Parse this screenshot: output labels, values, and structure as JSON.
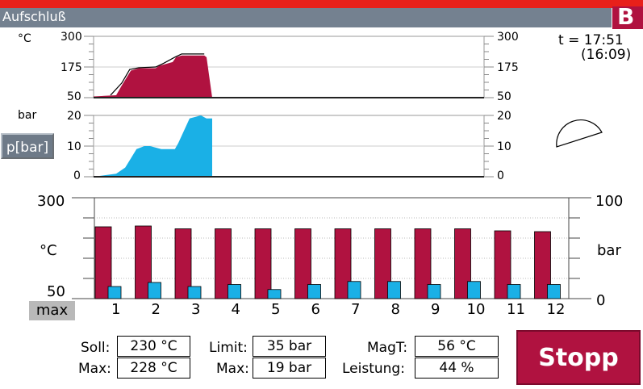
{
  "window": {
    "title": "Aufschluß",
    "logo_letter": "B"
  },
  "colors": {
    "temperature": "#b01240",
    "pressure": "#1ab0e6",
    "titlebar": "#748190",
    "alert": "#e8201a"
  },
  "time": {
    "current": "t = 17:51",
    "elapsed": "(16:09)"
  },
  "temp_chart": {
    "unit": "°C",
    "ticks": [
      "300",
      "175",
      "50"
    ],
    "ylim": [
      50,
      300
    ],
    "fill": [
      [
        0,
        55
      ],
      [
        0.2,
        60
      ],
      [
        0.25,
        100
      ],
      [
        0.33,
        160
      ],
      [
        0.4,
        170
      ],
      [
        0.55,
        170
      ],
      [
        0.58,
        180
      ],
      [
        0.62,
        185
      ],
      [
        0.7,
        195
      ],
      [
        0.73,
        215
      ],
      [
        0.78,
        222
      ],
      [
        0.98,
        222
      ],
      [
        1.0,
        215
      ],
      [
        1.05,
        50
      ]
    ],
    "line": [
      [
        0.15,
        60
      ],
      [
        0.25,
        110
      ],
      [
        0.32,
        165
      ],
      [
        0.4,
        172
      ],
      [
        0.55,
        175
      ],
      [
        0.62,
        190
      ],
      [
        0.72,
        215
      ],
      [
        0.78,
        228
      ],
      [
        0.98,
        228
      ]
    ]
  },
  "pressure_chart": {
    "unit": "bar",
    "ticks": [
      "20",
      "10",
      "0"
    ],
    "ylim": [
      0,
      20
    ],
    "fill": [
      [
        0,
        0
      ],
      [
        0.2,
        1
      ],
      [
        0.28,
        3
      ],
      [
        0.33,
        6
      ],
      [
        0.38,
        9
      ],
      [
        0.45,
        10
      ],
      [
        0.5,
        10
      ],
      [
        0.6,
        9
      ],
      [
        0.72,
        9
      ],
      [
        0.75,
        11
      ],
      [
        0.8,
        15
      ],
      [
        0.85,
        19
      ],
      [
        0.95,
        20
      ],
      [
        1.0,
        19
      ],
      [
        1.05,
        19
      ]
    ]
  },
  "p_button": "p[bar]",
  "vessel_chart": {
    "left_ticks": [
      "300",
      "°C",
      "50"
    ],
    "right_ticks": [
      "100",
      "bar",
      "0"
    ],
    "max_label": "max",
    "temp_ylim": [
      50,
      300
    ],
    "pressure_ylim": [
      0,
      100
    ],
    "categories": [
      "1",
      "2",
      "3",
      "4",
      "5",
      "6",
      "7",
      "8",
      "9",
      "10",
      "11",
      "12"
    ],
    "temperatures": [
      228,
      230,
      223,
      223,
      223,
      223,
      223,
      223,
      223,
      223,
      218,
      216
    ],
    "pressures": [
      12,
      16,
      12,
      14,
      9,
      14,
      17,
      17,
      14,
      17,
      14,
      14
    ]
  },
  "fields": {
    "soll_label": "Soll:",
    "soll_value": "230 °C",
    "max_t_label": "Max:",
    "max_t_value": "228 °C",
    "limit_label": "Limit:",
    "limit_value": "35 bar",
    "max_p_label": "Max:",
    "max_p_value": "19 bar",
    "magt_label": "MagT:",
    "magt_value": "56 °C",
    "leistung_label": "Leistung:",
    "leistung_value": "44 %"
  },
  "stopp_button": "Stopp"
}
